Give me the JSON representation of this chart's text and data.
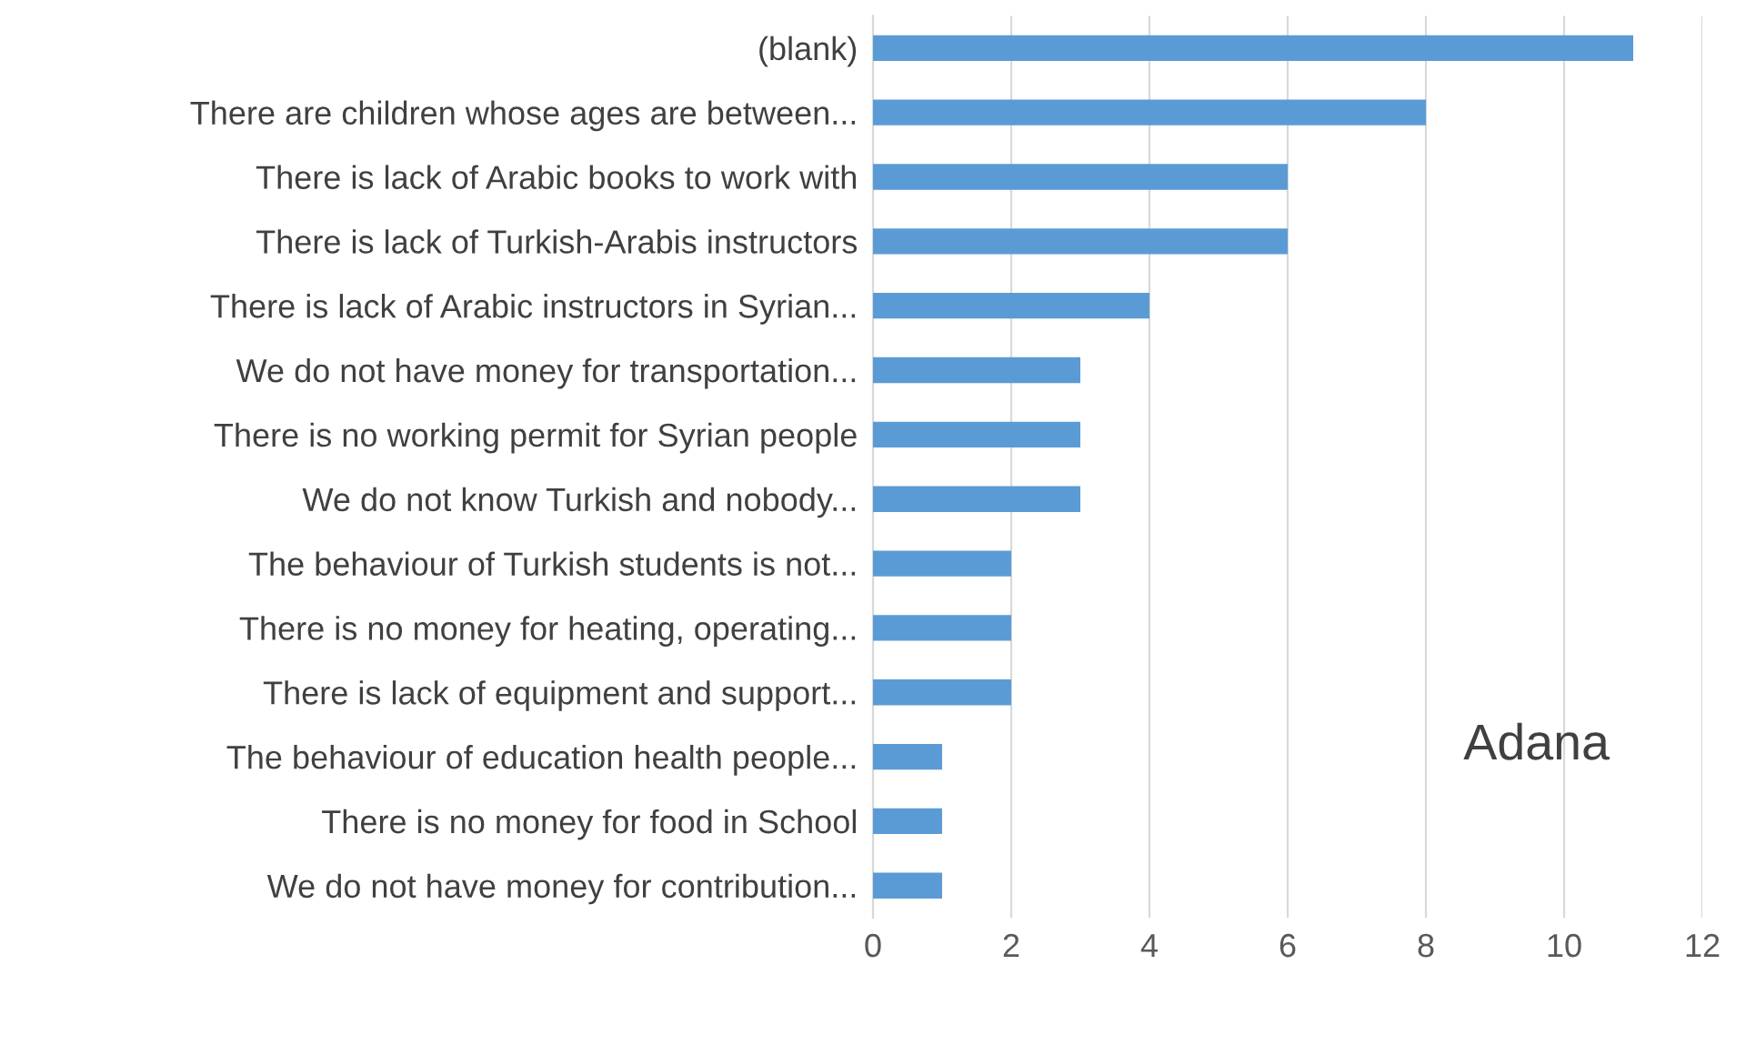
{
  "chart_data": {
    "type": "bar",
    "orientation": "horizontal",
    "categories": [
      "(blank)",
      "There are children whose ages are between...",
      "There is lack of Arabic books to work with",
      "There is lack of Turkish-Arabis instructors",
      "There is lack of Arabic instructors in Syrian...",
      "We do not have money for transportation...",
      "There is no working permit for Syrian people",
      "We do not know Turkish and nobody...",
      "The behaviour of Turkish students is not...",
      "There is no money for heating, operating...",
      "There is lack of equipment and support...",
      "The behaviour of education health people...",
      "There is no money for food in School",
      "We do not have money for contribution..."
    ],
    "values": [
      11,
      8,
      6,
      6,
      4,
      3,
      3,
      3,
      2,
      2,
      2,
      1,
      1,
      1
    ],
    "color": "#5b9bd5",
    "xlim": [
      0,
      12
    ],
    "xticks": [
      0,
      2,
      4,
      6,
      8,
      10,
      12
    ],
    "grid": "x",
    "annotations": [
      "Adana"
    ]
  }
}
